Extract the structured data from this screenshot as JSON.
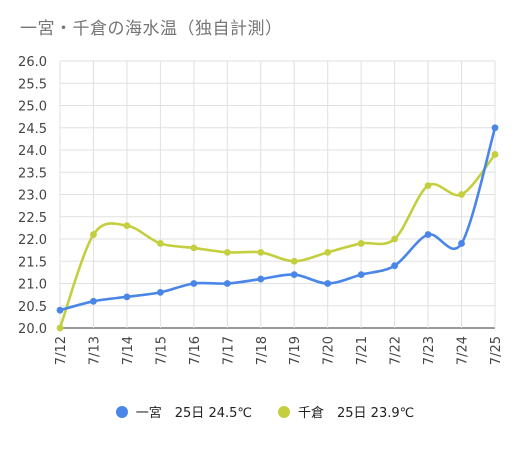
{
  "chart_title": "一宮・千倉の海水温（独自計測）",
  "legend": {
    "items": [
      {
        "label": "一宮　25日 24.5℃",
        "color": "#4a86e8"
      },
      {
        "label": "千倉　25日 23.9℃",
        "color": "#c3cf3e"
      }
    ]
  },
  "chart_data": {
    "type": "line",
    "title": "一宮・千倉の海水温（独自計測）",
    "xlabel": "",
    "ylabel": "",
    "ylim": [
      20.0,
      26.0
    ],
    "y_ticks": [
      "20.0",
      "20.5",
      "21.0",
      "21.5",
      "22.0",
      "22.5",
      "23.0",
      "23.5",
      "24.0",
      "24.5",
      "25.0",
      "25.5",
      "26.0"
    ],
    "categories": [
      "7/12",
      "7/13",
      "7/14",
      "7/15",
      "7/16",
      "7/17",
      "7/18",
      "7/19",
      "7/20",
      "7/21",
      "7/22",
      "7/23",
      "7/24",
      "7/25"
    ],
    "grid": true,
    "legend_position": "bottom",
    "series": [
      {
        "name": "一宮",
        "color": "#4a86e8",
        "values": [
          20.4,
          20.6,
          20.7,
          20.8,
          21.0,
          21.0,
          21.1,
          21.2,
          21.0,
          21.2,
          21.4,
          22.1,
          21.9,
          24.5
        ]
      },
      {
        "name": "千倉",
        "color": "#c3cf3e",
        "values": [
          20.0,
          22.1,
          22.3,
          21.9,
          21.8,
          21.7,
          21.7,
          21.5,
          21.7,
          21.9,
          22.0,
          23.2,
          23.0,
          23.9
        ]
      }
    ]
  }
}
